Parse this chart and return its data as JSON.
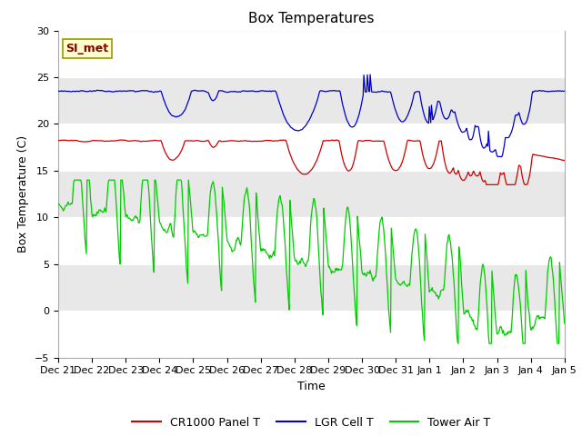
{
  "title": "Box Temperatures",
  "xlabel": "Time",
  "ylabel": "Box Temperature (C)",
  "ylim": [
    -5,
    30
  ],
  "yticks": [
    -5,
    0,
    5,
    10,
    15,
    20,
    25,
    30
  ],
  "xtick_labels": [
    "Dec 21",
    "Dec 22",
    "Dec 23",
    "Dec 24",
    "Dec 25",
    "Dec 26",
    "Dec 27",
    "Dec 28",
    "Dec 29",
    "Dec 30",
    "Dec 31",
    "Jan 1",
    "Jan 2",
    "Jan 3",
    "Jan 4",
    "Jan 5"
  ],
  "annotation_text": "SI_met",
  "annotation_bbox_facecolor": "#ffffcc",
  "annotation_bbox_edgecolor": "#999900",
  "line_colors": {
    "red": "#cc0000",
    "blue": "#0000cc",
    "green": "#00cc00"
  },
  "legend_labels": [
    "CR1000 Panel T",
    "LGR Cell T",
    "Tower Air T"
  ],
  "background_color": "#ffffff",
  "plot_bg_color": "#e8e8e8",
  "white_band_color": "#ffffff",
  "title_fontsize": 11,
  "axis_label_fontsize": 9,
  "tick_fontsize": 8,
  "legend_fontsize": 9
}
